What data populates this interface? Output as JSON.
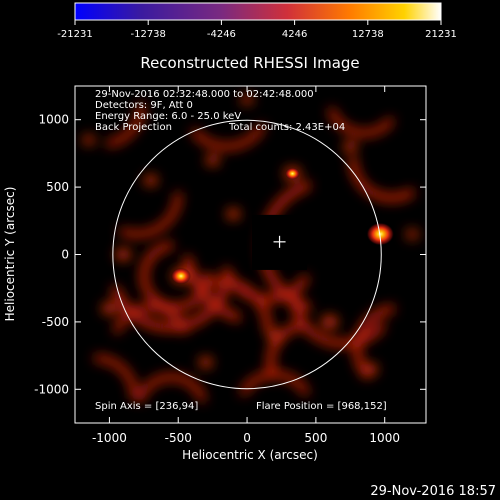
{
  "chart_data": {
    "type": "heatmap",
    "title": "Reconstructed RHESSI Image",
    "xlabel": "Heliocentric X (arcsec)",
    "ylabel": "Heliocentric Y (arcsec)",
    "xlim": [
      -1250,
      1300
    ],
    "ylim": [
      -1250,
      1250
    ],
    "x_ticks": [
      -1000,
      -500,
      0,
      500,
      1000
    ],
    "y_ticks": [
      -1000,
      -500,
      0,
      500,
      1000
    ],
    "colorbar": {
      "min": -21231,
      "max": 21231,
      "tick_values": [
        -21231,
        -12738,
        -4246,
        4246,
        12738,
        21231
      ],
      "tick_labels": [
        "-21231",
        "-12738",
        "-4246",
        "4246",
        "12738",
        "21231"
      ],
      "colors": [
        "#0000ff",
        "#5a1a9a",
        "#8a2a7a",
        "#d0303a",
        "#ff7a00",
        "#ffd200",
        "#ffffff"
      ]
    },
    "annotations": [
      "29-Nov-2016 02:32:48.000 to 02:42:48.000",
      "Detectors: 9F, Att 0",
      "Energy Range: 6.0 - 25.0 keV",
      "Back Projection",
      "Total counts: 2.43E+04"
    ],
    "spin_axis_label": "Spin Axis = [236,94]",
    "flare_position_label": "Flare Position = [968,152]",
    "solar_disk_radius": 975,
    "spin_axis": [
      236,
      94
    ],
    "flare_position": [
      968,
      152
    ],
    "bright_sources": [
      {
        "x": 968,
        "y": 152,
        "value": 21000
      },
      {
        "x": -480,
        "y": -160,
        "value": 15000
      },
      {
        "x": 330,
        "y": 600,
        "value": 11000
      }
    ],
    "grid": false
  },
  "footer": {
    "timestamp": "29-Nov-2016 18:57"
  }
}
